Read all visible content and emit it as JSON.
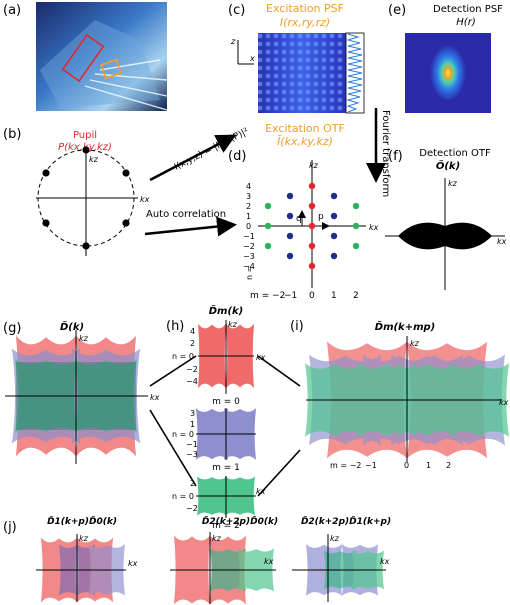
{
  "panel_labels": {
    "a": "(a)",
    "b": "(b)",
    "c": "(c)",
    "d": "(d)",
    "e": "(e)",
    "f": "(f)",
    "g": "(g)",
    "h": "(h)",
    "i": "(i)",
    "j": "(j)"
  },
  "b": {
    "title": "Pupil",
    "func": "P(kx,ky,kz)",
    "kx": "kx",
    "kz": "kz"
  },
  "arrows": {
    "fft": "I(x,y,z) = |FFT(P)|²",
    "autocorr": "Auto correlation",
    "fourier": "Fourier transform"
  },
  "c": {
    "title": "Excitation PSF",
    "func": "I(rx,ry,rz)",
    "axis_z": "z",
    "axis_x": "x"
  },
  "e": {
    "title": "Detection PSF",
    "func": "H(r)"
  },
  "d": {
    "title": "Excitation OTF",
    "func": "Ĩ(kx,ky,kz)",
    "kz": "kz",
    "kx": "kx",
    "q": "q",
    "p": "p",
    "n_label": "n =",
    "n_ticks": [
      "4",
      "3",
      "2",
      "1",
      "0",
      "−1",
      "−2",
      "−3",
      "−4"
    ],
    "m_label": "m = −2",
    "m_ticks": [
      "−1",
      "0",
      "1",
      "2"
    ]
  },
  "f": {
    "title": "Detection OTF",
    "func": "Õ(k)",
    "kz": "kz",
    "kx": "kx"
  },
  "g": {
    "title": "D̃(k)",
    "kz": "kz",
    "kx": "kx"
  },
  "h": {
    "title": "D̃m(k)",
    "kz": "kz",
    "kx": "kx",
    "r0_ticks": [
      "4",
      "2",
      "n = 0",
      "−2",
      "−4"
    ],
    "r1_ticks": [
      "3",
      "1",
      "n = 0",
      "−1",
      "−3"
    ],
    "r2_ticks": [
      "2",
      "n = 0",
      "−2"
    ],
    "m0": "m = 0",
    "m1": "m = 1",
    "m2": "m = 2"
  },
  "i": {
    "title": "D̃m(k+mp)",
    "kz": "kz",
    "kx": "kx",
    "m_label": "m = −2",
    "m_ticks": [
      "−1",
      "0",
      "1",
      "2"
    ]
  },
  "j": {
    "t1": "D̃1(k+p)D̃0(k)",
    "t2": "D̃2(k+2p)D̃0(k)",
    "t3": "D̃2(k+2p)D̃1(k+p)",
    "kz": "kz",
    "kx": "kx"
  },
  "colors": {
    "red": "#e8252e",
    "orange": "#f39c2b",
    "salmon": "#ef6b6b",
    "lavender": "#8d8fcf",
    "green": "#4fc68f",
    "navy": "#1e2c8c"
  }
}
